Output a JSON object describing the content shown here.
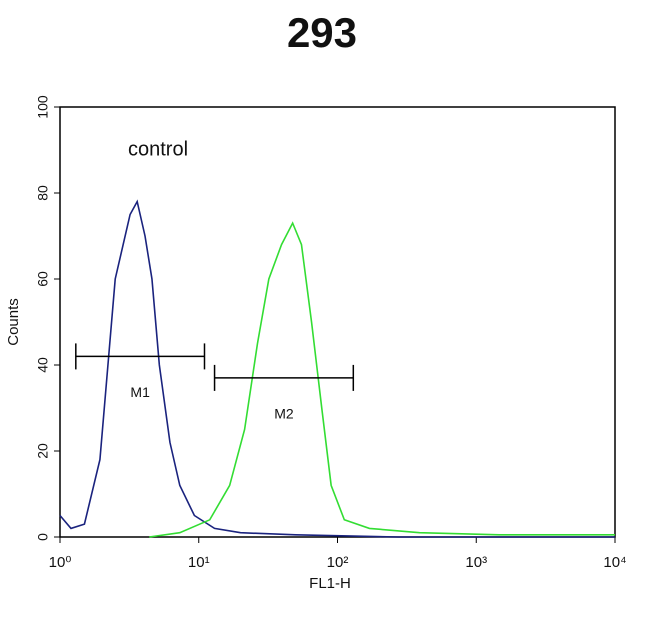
{
  "chart_data": {
    "type": "line",
    "title": "293",
    "xlabel": "FL1-H",
    "ylabel": "Counts",
    "annotation": "control",
    "xscale": "log",
    "xlim": [
      1,
      10000
    ],
    "ylim": [
      0,
      100
    ],
    "xticks": [
      {
        "value": 1,
        "label": "10⁰"
      },
      {
        "value": 10,
        "label": "10¹"
      },
      {
        "value": 100,
        "label": "10²"
      },
      {
        "value": 1000,
        "label": "10³"
      },
      {
        "value": 10000,
        "label": "10⁴"
      }
    ],
    "yticks": [
      0,
      20,
      40,
      60,
      80,
      100
    ],
    "series": [
      {
        "color": "#1a237e",
        "x": [
          1,
          1.2,
          1.5,
          1.94,
          2.5,
          3.2,
          3.6,
          4.1,
          4.6,
          5.2,
          6.2,
          7.3,
          9.3,
          13,
          20,
          50,
          277,
          10000
        ],
        "values": [
          5,
          2,
          3,
          18,
          60,
          75,
          78,
          70,
          60,
          40,
          22,
          12,
          5,
          2,
          1,
          0.5,
          0,
          0
        ]
      },
      {
        "color": "#33dd33",
        "x": [
          4.4,
          7.3,
          12,
          16.7,
          21.4,
          26.5,
          32,
          39.5,
          47.5,
          55,
          65,
          77,
          90,
          112,
          170,
          390,
          1470,
          7700,
          10000
        ],
        "values": [
          0,
          1,
          4,
          12,
          25,
          45,
          60,
          68,
          73,
          68,
          50,
          30,
          12,
          4,
          2,
          1,
          0.5,
          0.5,
          0.5
        ]
      }
    ],
    "gates": [
      {
        "label": "M1",
        "range": [
          1.3,
          11
        ],
        "y": 42
      },
      {
        "label": "M2",
        "range": [
          13,
          130
        ],
        "y": 37
      }
    ]
  }
}
